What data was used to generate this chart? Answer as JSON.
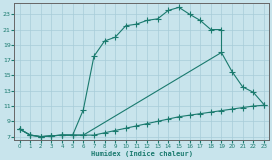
{
  "bg_color": "#c8e4ec",
  "line_color": "#1a7a6e",
  "grid_color": "#a8cdd8",
  "xlabel": "Humidex (Indice chaleur)",
  "xlim": [
    -0.5,
    23.5
  ],
  "ylim": [
    6.5,
    24.5
  ],
  "xticks": [
    0,
    1,
    2,
    3,
    4,
    5,
    6,
    7,
    8,
    9,
    10,
    11,
    12,
    13,
    14,
    15,
    16,
    17,
    18,
    19,
    20,
    21,
    22,
    23
  ],
  "yticks": [
    7,
    9,
    11,
    13,
    15,
    17,
    19,
    21,
    23
  ],
  "curve1_x": [
    0,
    1,
    2,
    3,
    4,
    5,
    6,
    7,
    8,
    9,
    10,
    11,
    12,
    13,
    14,
    15,
    16,
    17,
    18,
    19
  ],
  "curve1_y": [
    8,
    7.2,
    7.0,
    7.1,
    7.2,
    7.2,
    10.5,
    17.5,
    19.5,
    20.0,
    21.5,
    21.7,
    22.2,
    22.4,
    23.5,
    23.9,
    23.0,
    22.2,
    21.0,
    21.0
  ],
  "curve2_x": [
    0,
    1,
    2,
    3,
    4,
    5,
    6,
    19,
    20,
    21,
    22,
    23
  ],
  "curve2_y": [
    8,
    7.2,
    7.0,
    7.1,
    7.2,
    7.2,
    7.2,
    18.0,
    15.5,
    13.5,
    12.8,
    11.2
  ],
  "curve3_x": [
    0,
    1,
    2,
    3,
    4,
    5,
    6,
    7,
    8,
    9,
    10,
    11,
    12,
    13,
    14,
    15,
    16,
    17,
    18,
    19,
    20,
    21,
    22,
    23
  ],
  "curve3_y": [
    8,
    7.2,
    7.0,
    7.1,
    7.2,
    7.2,
    7.2,
    7.2,
    7.5,
    7.8,
    8.1,
    8.4,
    8.7,
    9.0,
    9.3,
    9.6,
    9.8,
    10.0,
    10.2,
    10.4,
    10.6,
    10.8,
    11.0,
    11.1
  ]
}
